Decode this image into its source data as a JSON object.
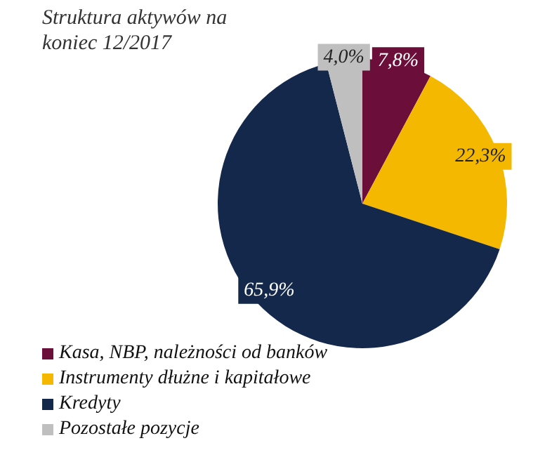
{
  "chart_data": {
    "type": "pie",
    "title": "Struktura aktywów na koniec 12/2017",
    "categories": [
      "Kasa, NBP, należności od banków",
      "Instrumenty dłużne i kapitałowe",
      "Kredyty",
      "Pozostałe pozycje"
    ],
    "values": [
      7.8,
      22.3,
      65.9,
      4.0
    ],
    "colors": [
      "#6b0f3a",
      "#f5b800",
      "#14284b",
      "#bfbfbf"
    ],
    "value_labels": [
      "7,8%",
      "22,3%",
      "65,9%",
      "4,0%"
    ],
    "legend": "bottom left"
  }
}
